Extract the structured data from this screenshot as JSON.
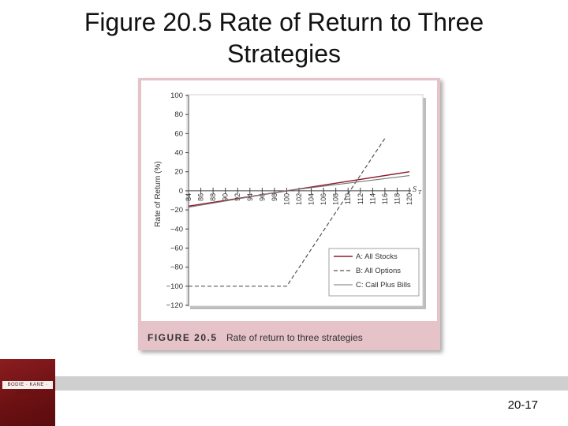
{
  "slide": {
    "title": "Figure 20.5 Rate of Return to Three\nStrategies",
    "page_number": "20-17",
    "logo_text": "BODIE · KANE · MARCUS"
  },
  "figure": {
    "label": "FIGURE 20.5",
    "caption": "Rate of return to three strategies"
  },
  "colors": {
    "card": "#e6c2c9",
    "stocks_line": "#8b1a2b",
    "options_line": "#555555",
    "bills_line": "#777777"
  },
  "chart_data": {
    "type": "line",
    "title": "",
    "xlabel": "",
    "x_end_label": "S",
    "x_end_subscript": "T",
    "ylabel": "Rate of Return (%)",
    "xlim": [
      84,
      120
    ],
    "ylim": [
      -120,
      100
    ],
    "x_ticks": [
      84,
      86,
      88,
      90,
      92,
      94,
      96,
      98,
      100,
      102,
      104,
      106,
      108,
      110,
      112,
      114,
      116,
      118,
      120
    ],
    "y_ticks": [
      100,
      80,
      60,
      40,
      20,
      0,
      -20,
      -40,
      -60,
      -80,
      -100,
      -120
    ],
    "grid": false,
    "legend_position": "bottom-right",
    "series": [
      {
        "name": "A: All Stocks",
        "style": "solid",
        "x": [
          84,
          120
        ],
        "y": [
          -16,
          20
        ]
      },
      {
        "name": "B: All Options",
        "style": "dashed",
        "x": [
          84,
          100,
          116
        ],
        "y": [
          -100,
          -100,
          55
        ]
      },
      {
        "name": "C: Call Plus Bills",
        "style": "solid",
        "x": [
          84,
          100,
          120
        ],
        "y": [
          -17.2,
          0.2,
          16
        ]
      }
    ]
  }
}
